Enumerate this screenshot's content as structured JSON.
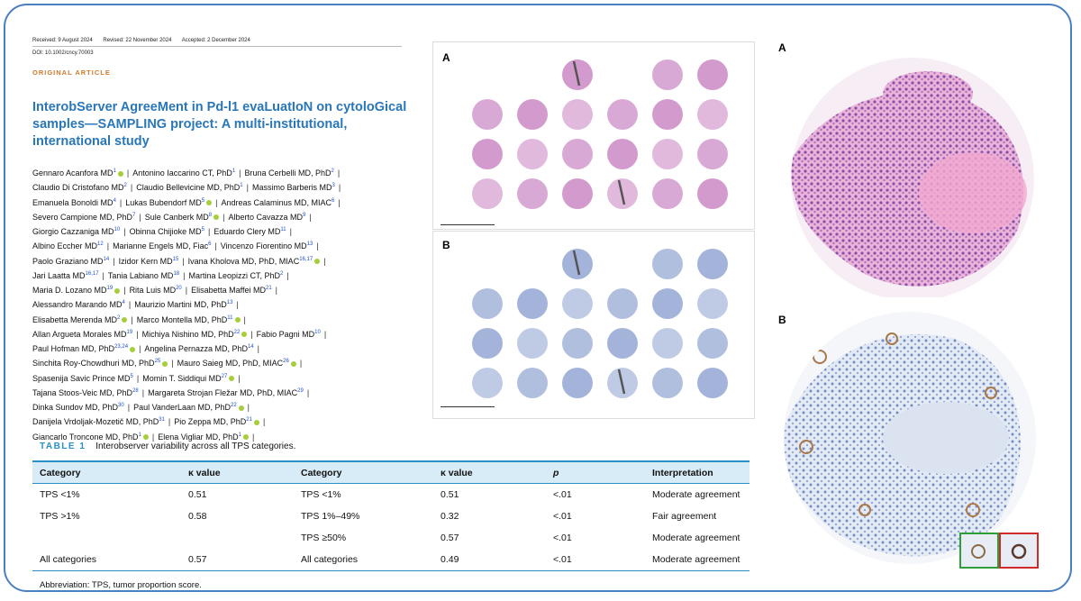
{
  "meta": {
    "received": "Received: 9 August 2024",
    "revised": "Revised: 22 November 2024",
    "accepted": "Accepted: 2 December 2024",
    "doi": "DOI: 10.1002/cncy.70003"
  },
  "article_type": "ORIGINAL ARTICLE",
  "title": "InterobServer AgreeMent in Pd-l1 evaLuatIoN on cytoloGical samples—SAMPLING project: A multi-institutional, international study",
  "authors_lines": [
    [
      {
        "n": "Gennaro Acanfora MD",
        "s": "1",
        "o": true
      },
      {
        "n": "Antonino Iaccarino CT, PhD",
        "s": "1",
        "o": false
      },
      {
        "n": "Bruna Cerbelli MD, PhD",
        "s": "2",
        "o": false
      }
    ],
    [
      {
        "n": "Claudio Di Cristofano MD",
        "s": "2",
        "o": false
      },
      {
        "n": "Claudio Bellevicine MD, PhD",
        "s": "1",
        "o": false
      },
      {
        "n": "Massimo Barberis MD",
        "s": "3",
        "o": false
      }
    ],
    [
      {
        "n": "Emanuela Bonoldi MD",
        "s": "4",
        "o": false
      },
      {
        "n": "Lukas Bubendorf MD",
        "s": "5",
        "o": true
      },
      {
        "n": "Andreas Calaminus MD, MIAC",
        "s": "6",
        "o": false
      }
    ],
    [
      {
        "n": "Severo Campione MD, PhD",
        "s": "7",
        "o": false
      },
      {
        "n": "Sule Canberk MD",
        "s": "8",
        "o": true
      },
      {
        "n": "Alberto Cavazza MD",
        "s": "9",
        "o": false
      }
    ],
    [
      {
        "n": "Giorgio Cazzaniga MD",
        "s": "10",
        "o": false
      },
      {
        "n": "Obinna Chijioke MD",
        "s": "5",
        "o": false
      },
      {
        "n": "Eduardo Clery MD",
        "s": "11",
        "o": false
      }
    ],
    [
      {
        "n": "Albino Eccher MD",
        "s": "12",
        "o": false
      },
      {
        "n": "Marianne Engels MD, Fiac",
        "s": "6",
        "o": false
      },
      {
        "n": "Vincenzo Fiorentino MD",
        "s": "13",
        "o": false
      }
    ],
    [
      {
        "n": "Paolo Graziano MD",
        "s": "14",
        "o": false
      },
      {
        "n": "Izidor Kern MD",
        "s": "15",
        "o": false
      },
      {
        "n": "Ivana Kholova MD, PhD, MIAC",
        "s": "16,17",
        "o": true
      }
    ],
    [
      {
        "n": "Jari Laatta MD",
        "s": "16,17",
        "o": false
      },
      {
        "n": "Tania Labiano MD",
        "s": "18",
        "o": false
      },
      {
        "n": "Martina Leopizzi CT, PhD",
        "s": "2",
        "o": false
      }
    ],
    [
      {
        "n": "Maria D. Lozano MD",
        "s": "19",
        "o": true
      },
      {
        "n": "Rita Luis MD",
        "s": "20",
        "o": false
      },
      {
        "n": "Elisabetta Maffei MD",
        "s": "21",
        "o": false
      }
    ],
    [
      {
        "n": "Alessandro Marando MD",
        "s": "4",
        "o": false
      },
      {
        "n": "Maurizio Martini MD, PhD",
        "s": "13",
        "o": false
      }
    ],
    [
      {
        "n": "Elisabetta Merenda MD",
        "s": "2",
        "o": true
      },
      {
        "n": "Marco Montella MD, PhD",
        "s": "11",
        "o": true
      }
    ],
    [
      {
        "n": "Allan Argueta Morales MD",
        "s": "19",
        "o": false
      },
      {
        "n": "Michiya Nishino MD, PhD",
        "s": "22",
        "o": true
      },
      {
        "n": "Fabio Pagni MD",
        "s": "10",
        "o": false
      }
    ],
    [
      {
        "n": "Paul Hofman MD, PhD",
        "s": "23,24",
        "o": true
      },
      {
        "n": "Angelina Pernazza MD, PhD",
        "s": "14",
        "o": false
      }
    ],
    [
      {
        "n": "Sinchita Roy-Chowdhuri MD, PhD",
        "s": "25",
        "o": true
      },
      {
        "n": "Mauro Saieg MD, PhD, MIAC",
        "s": "26",
        "o": true
      }
    ],
    [
      {
        "n": "Spasenija Savic Prince MD",
        "s": "5",
        "o": false
      },
      {
        "n": "Momin T. Siddiqui MD",
        "s": "27",
        "o": true
      }
    ],
    [
      {
        "n": "Tajana Stoos-Veic MD, PhD",
        "s": "28",
        "o": false
      },
      {
        "n": "Margareta Strojan Fležar MD, PhD, MIAC",
        "s": "29",
        "o": false
      }
    ],
    [
      {
        "n": "Dinka Sundov MD, PhD",
        "s": "30",
        "o": false
      },
      {
        "n": "Paul VanderLaan MD, PhD",
        "s": "22",
        "o": true
      }
    ],
    [
      {
        "n": "Danijela Vrdoljak-Mozetič MD, PhD",
        "s": "31",
        "o": false
      },
      {
        "n": "Pio Zeppa MD, PhD",
        "s": "21",
        "o": true
      }
    ],
    [
      {
        "n": "Giancarlo Troncone MD, PhD",
        "s": "1",
        "o": true
      },
      {
        "n": "Elena Vigliar MD, PhD",
        "s": "1",
        "o": true
      }
    ]
  ],
  "table": {
    "label": "TABLE 1",
    "caption": "Interobserver variability across all TPS categories.",
    "headers": [
      "Category",
      "κ value",
      "Category",
      "κ value",
      "p",
      "Interpretation"
    ],
    "rows": [
      [
        "TPS <1%",
        "0.51",
        "TPS <1%",
        "0.51",
        "<.01",
        "Moderate agreement"
      ],
      [
        "TPS >1%",
        "0.58",
        "TPS 1%–49%",
        "0.32",
        "<.01",
        "Fair agreement"
      ],
      [
        "",
        "",
        "TPS ≥50%",
        "0.57",
        "<.01",
        "Moderate agreement"
      ],
      [
        "All categories",
        "0.57",
        "All categories",
        "0.49",
        "<.01",
        "Moderate agreement"
      ]
    ],
    "abbreviation": "Abbreviation: TPS, tumor proportion score."
  },
  "figures": {
    "tma_he_label": "A",
    "tma_ihc_label": "B",
    "core_he_label": "A",
    "core_ihc_label": "B",
    "he_color": "#c77fc0",
    "ihc_color": "#8b9fd0",
    "tma_rows": [
      [
        0,
        0,
        1,
        0,
        1,
        1
      ],
      [
        1,
        1,
        1,
        1,
        1,
        1
      ],
      [
        1,
        1,
        1,
        1,
        1,
        1
      ],
      [
        1,
        1,
        1,
        1,
        1,
        1
      ]
    ]
  }
}
